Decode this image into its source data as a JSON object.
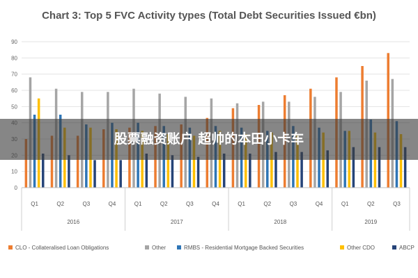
{
  "chart_data": {
    "type": "bar",
    "title": "Chart 3: Top 5 FVC Activity types (Total Debt Securities Issued €bn)",
    "ylim": [
      0,
      90
    ],
    "yticks": [
      0,
      10,
      20,
      30,
      40,
      50,
      60,
      70,
      80,
      90
    ],
    "grid": true,
    "legend_position": "bottom",
    "categories": [
      "Q1",
      "Q2",
      "Q3",
      "Q4",
      "Q1",
      "Q2",
      "Q3",
      "Q4",
      "Q1",
      "Q2",
      "Q3",
      "Q4",
      "Q1",
      "Q2",
      "Q3"
    ],
    "groups": [
      {
        "label": "2016",
        "count": 4
      },
      {
        "label": "2017",
        "count": 4
      },
      {
        "label": "2018",
        "count": 4
      },
      {
        "label": "2019",
        "count": 3
      }
    ],
    "series": [
      {
        "name": "CLO - Collateralised Loan Obligations",
        "color": "#ed7d31",
        "values": [
          30,
          32,
          32,
          36,
          37,
          38,
          39,
          43,
          49,
          51,
          57,
          61,
          68,
          75,
          83
        ]
      },
      {
        "name": "Other",
        "color": "#a5a5a5",
        "values": [
          68,
          61,
          59,
          59,
          61,
          58,
          56,
          55,
          52,
          53,
          53,
          56,
          59,
          66,
          67
        ]
      },
      {
        "name": "RMBS - Residential Mortgage Backed Securities",
        "color": "#2e75b6",
        "values": [
          45,
          45,
          39,
          40,
          40,
          38,
          37,
          38,
          37,
          35,
          38,
          37,
          35,
          42,
          41
        ]
      },
      {
        "name": "Other CDO",
        "color": "#ffc000",
        "values": [
          55,
          37,
          37,
          36,
          35,
          33,
          32,
          35,
          33,
          34,
          33,
          34,
          35,
          34,
          33
        ]
      },
      {
        "name": "ABCP",
        "color": "#264478",
        "values": [
          21,
          20,
          17,
          17,
          21,
          20,
          19,
          21,
          21,
          22,
          22,
          23,
          25,
          25,
          25
        ]
      }
    ]
  },
  "overlay": {
    "watermark_text": "股票融资账户 超帅的本田小卡车"
  }
}
